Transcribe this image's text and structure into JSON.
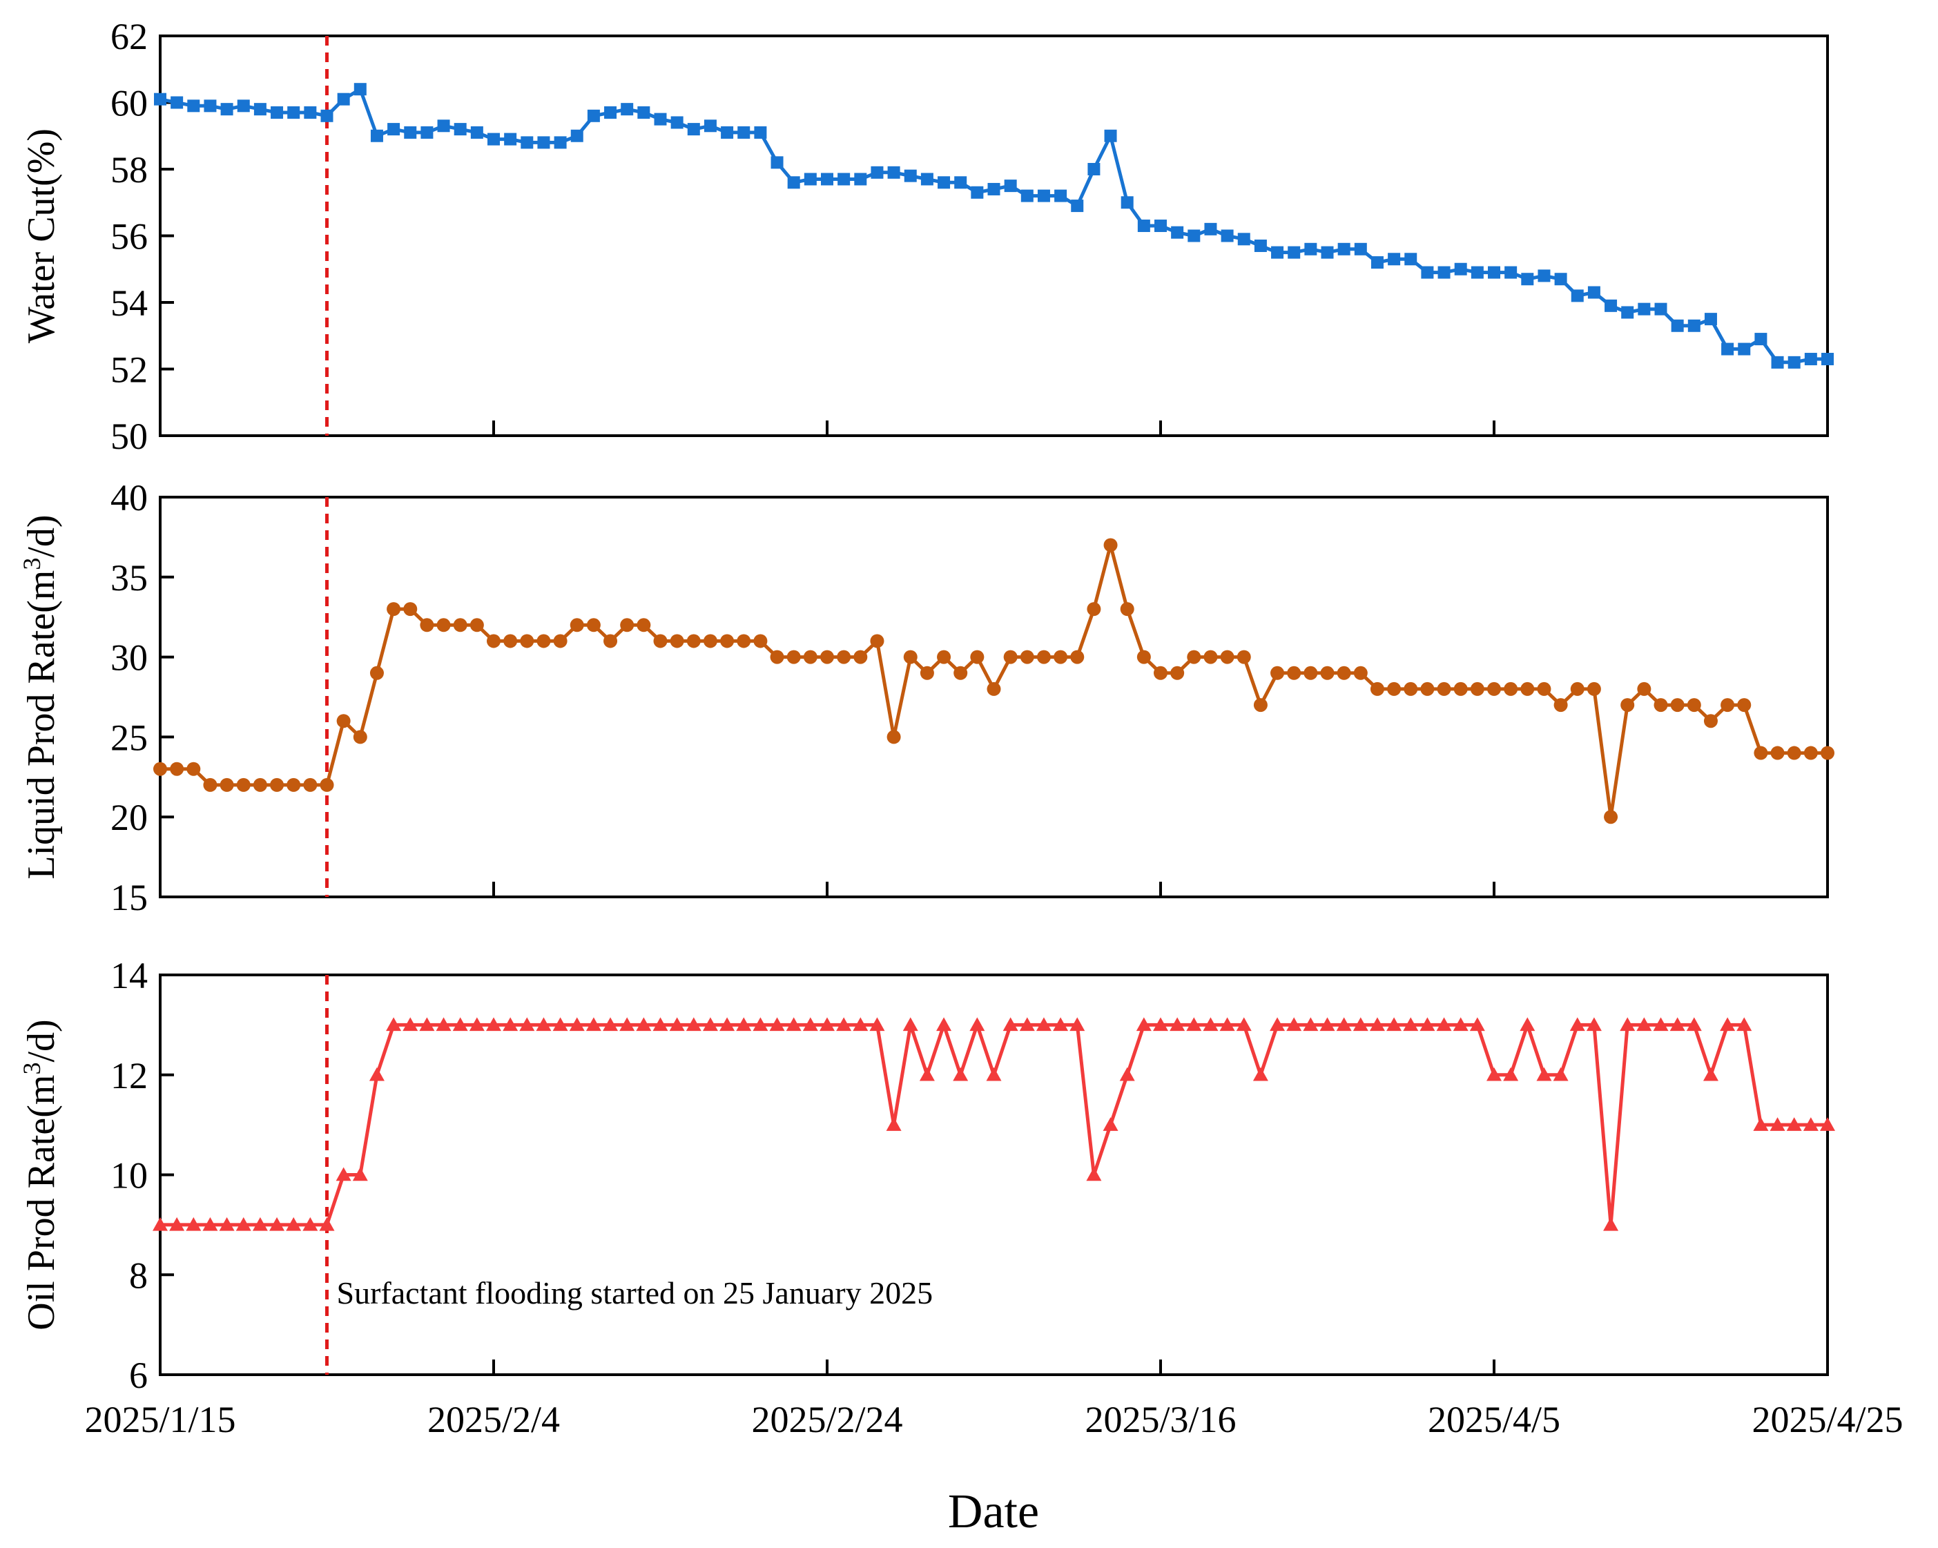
{
  "chart_data": {
    "type": "line",
    "xlabel": "Date",
    "x_ticks": [
      "2025/1/15",
      "2025/2/4",
      "2025/2/24",
      "2025/3/16",
      "2025/4/5",
      "2025/4/25"
    ],
    "x_range": [
      "2025/1/15",
      "2025/4/25"
    ],
    "start_date": "2025/1/15",
    "annotation": "Surfactant flooding started on 25 January 2025",
    "marker_date": "2025/1/25",
    "panels": [
      {
        "ylabel": "Water Cut(%)",
        "ylim": [
          50,
          62
        ],
        "yticks": [
          50,
          52,
          54,
          56,
          58,
          60,
          62
        ],
        "color": "#1874d2",
        "marker": "square",
        "days": [
          0,
          1,
          2,
          3,
          4,
          5,
          6,
          7,
          8,
          9,
          10,
          11,
          12,
          13,
          14,
          15,
          16,
          17,
          18,
          19,
          20,
          21,
          22,
          23,
          24,
          25,
          26,
          27,
          28,
          29,
          30,
          31,
          32,
          33,
          34,
          35,
          36,
          37,
          38,
          39,
          40,
          41,
          42,
          43,
          44,
          45,
          46,
          47,
          48,
          49,
          50,
          51,
          52,
          53,
          54,
          55,
          56,
          57,
          58,
          59,
          60,
          61,
          62,
          63,
          64,
          65,
          66,
          67,
          68,
          69,
          70,
          71,
          72,
          73,
          74,
          75,
          76,
          77,
          78,
          79,
          80,
          81,
          82,
          83,
          84,
          85,
          86,
          87,
          88,
          89,
          90,
          91,
          92,
          93,
          94,
          95,
          96,
          97,
          98,
          99,
          100
        ],
        "values": [
          60.1,
          60.0,
          59.9,
          59.9,
          59.8,
          59.9,
          59.8,
          59.7,
          59.7,
          59.7,
          59.6,
          60.1,
          60.4,
          59.0,
          59.2,
          59.1,
          59.1,
          59.3,
          59.2,
          59.1,
          58.9,
          58.9,
          58.8,
          58.8,
          58.8,
          59.0,
          59.6,
          59.7,
          59.8,
          59.7,
          59.5,
          59.4,
          59.2,
          59.3,
          59.1,
          59.1,
          59.1,
          58.2,
          57.6,
          57.7,
          57.7,
          57.7,
          57.7,
          57.9,
          57.9,
          57.8,
          57.7,
          57.6,
          57.6,
          57.3,
          57.4,
          57.5,
          57.2,
          57.2,
          57.2,
          56.9,
          58.0,
          59.0,
          57.0,
          56.3,
          56.3,
          56.1,
          56.0,
          56.2,
          56.0,
          55.9,
          55.7,
          55.5,
          55.5,
          55.6,
          55.5,
          55.6,
          55.6,
          55.2,
          55.3,
          55.3,
          54.9,
          54.9,
          55.0,
          54.9,
          54.9,
          54.9,
          54.7,
          54.8,
          54.7,
          54.2,
          54.3,
          53.9,
          53.7,
          53.8,
          53.8,
          53.3,
          53.3,
          53.5,
          52.6,
          52.6,
          52.9,
          52.2,
          52.2,
          52.3,
          52.3
        ]
      },
      {
        "ylabel": "Liquid Prod Rate(m",
        "ylabel_sup": "3",
        "ylabel_tail": "/d)",
        "ylim": [
          15,
          40
        ],
        "yticks": [
          15,
          20,
          25,
          30,
          35,
          40
        ],
        "color": "#c35a0e",
        "marker": "circle",
        "days": [
          0,
          1,
          2,
          3,
          4,
          5,
          6,
          7,
          8,
          9,
          10,
          11,
          12,
          13,
          14,
          15,
          16,
          17,
          18,
          19,
          20,
          21,
          22,
          23,
          24,
          25,
          26,
          27,
          28,
          29,
          30,
          31,
          32,
          33,
          34,
          35,
          36,
          37,
          38,
          39,
          40,
          41,
          42,
          43,
          44,
          45,
          46,
          47,
          48,
          49,
          50,
          51,
          52,
          53,
          54,
          55,
          56,
          57,
          58,
          59,
          60,
          61,
          62,
          63,
          64,
          65,
          66,
          67,
          68,
          69,
          70,
          71,
          72,
          73,
          74,
          75,
          76,
          77,
          78,
          79,
          80,
          81,
          82,
          83,
          84,
          85,
          86,
          87,
          88,
          89,
          90,
          91,
          92,
          93,
          94,
          95,
          96,
          97,
          98,
          99,
          100
        ],
        "values": [
          23,
          23,
          23,
          22,
          22,
          22,
          22,
          22,
          22,
          22,
          22,
          26,
          25,
          29,
          33,
          33,
          32,
          32,
          32,
          32,
          31,
          31,
          31,
          31,
          31,
          32,
          32,
          31,
          32,
          32,
          31,
          31,
          31,
          31,
          31,
          31,
          31,
          30,
          30,
          30,
          30,
          30,
          30,
          31,
          25,
          30,
          29,
          30,
          29,
          30,
          28,
          30,
          30,
          30,
          30,
          30,
          33,
          37,
          33,
          30,
          29,
          29,
          30,
          30,
          30,
          30,
          27,
          29,
          29,
          29,
          29,
          29,
          29,
          28,
          28,
          28,
          28,
          28,
          28,
          28,
          28,
          28,
          28,
          28,
          27,
          28,
          28,
          20,
          27,
          28,
          27,
          27,
          27,
          26,
          27,
          27,
          24,
          24,
          24,
          24,
          24
        ]
      },
      {
        "ylabel": "Oil Prod Rate(m",
        "ylabel_sup": "3",
        "ylabel_tail": "/d)",
        "ylim": [
          6,
          14
        ],
        "yticks": [
          6,
          8,
          10,
          12,
          14
        ],
        "color": "#f23b3b",
        "marker": "triangle",
        "days": [
          0,
          1,
          2,
          3,
          4,
          5,
          6,
          7,
          8,
          9,
          10,
          11,
          12,
          13,
          14,
          15,
          16,
          17,
          18,
          19,
          20,
          21,
          22,
          23,
          24,
          25,
          26,
          27,
          28,
          29,
          30,
          31,
          32,
          33,
          34,
          35,
          36,
          37,
          38,
          39,
          40,
          41,
          42,
          43,
          44,
          45,
          46,
          47,
          48,
          49,
          50,
          51,
          52,
          53,
          54,
          55,
          56,
          57,
          58,
          59,
          60,
          61,
          62,
          63,
          64,
          65,
          66,
          67,
          68,
          69,
          70,
          71,
          72,
          73,
          74,
          75,
          76,
          77,
          78,
          79,
          80,
          81,
          82,
          83,
          84,
          85,
          86,
          87,
          88,
          89,
          90,
          91,
          92,
          93,
          94,
          95,
          96,
          97,
          98,
          99,
          100
        ],
        "values": [
          9,
          9,
          9,
          9,
          9,
          9,
          9,
          9,
          9,
          9,
          9,
          10,
          10,
          12,
          13,
          13,
          13,
          13,
          13,
          13,
          13,
          13,
          13,
          13,
          13,
          13,
          13,
          13,
          13,
          13,
          13,
          13,
          13,
          13,
          13,
          13,
          13,
          13,
          13,
          13,
          13,
          13,
          13,
          13,
          11,
          13,
          12,
          13,
          12,
          13,
          12,
          13,
          13,
          13,
          13,
          13,
          10,
          11,
          12,
          13,
          13,
          13,
          13,
          13,
          13,
          13,
          12,
          13,
          13,
          13,
          13,
          13,
          13,
          13,
          13,
          13,
          13,
          13,
          13,
          13,
          12,
          12,
          13,
          12,
          12,
          13,
          13,
          9,
          13,
          13,
          13,
          13,
          13,
          12,
          13,
          13,
          11,
          11,
          11,
          11,
          11
        ]
      }
    ]
  }
}
